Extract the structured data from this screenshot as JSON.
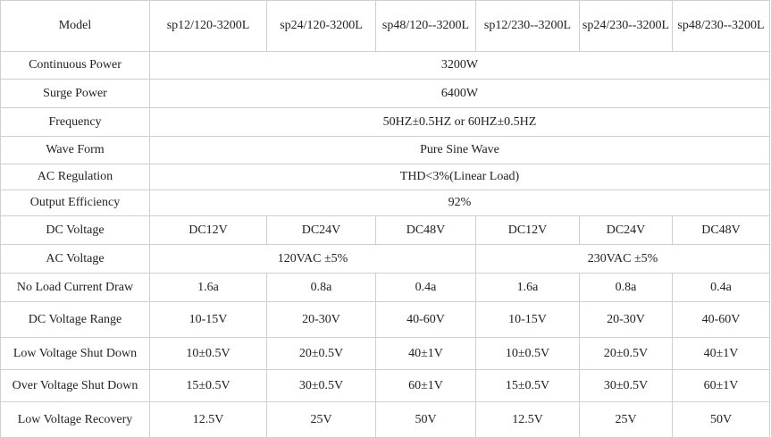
{
  "table": {
    "header": [
      "Model",
      "sp12/120-3200L",
      "sp24/120-3200L",
      "sp48/120--3200L",
      "sp12/230--3200L",
      "sp24/230--3200L",
      "sp48/230--3200L"
    ],
    "rows": [
      [
        "Continuous Power",
        "3200W"
      ],
      [
        "Surge Power",
        "6400W"
      ],
      [
        "Frequency",
        "50HZ±0.5HZ or 60HZ±0.5HZ"
      ],
      [
        "Wave Form",
        "Pure Sine Wave"
      ],
      [
        "AC Regulation",
        "THD<3%(Linear Load)"
      ],
      [
        "Output Efficiency",
        "92%"
      ],
      [
        "DC Voltage",
        "DC12V",
        "DC24V",
        "DC48V",
        "DC12V",
        "DC24V",
        "DC48V"
      ],
      [
        "AC Voltage",
        "120VAC ±5%",
        "230VAC ±5%"
      ],
      [
        "No Load Current Draw",
        "1.6a",
        "0.8a",
        "0.4a",
        "1.6a",
        "0.8a",
        "0.4a"
      ],
      [
        "DC Voltage Range",
        "10-15V",
        "20-30V",
        "40-60V",
        "10-15V",
        "20-30V",
        "40-60V"
      ],
      [
        "Low Voltage Shut Down",
        "10±0.5V",
        "20±0.5V",
        "40±1V",
        "10±0.5V",
        "20±0.5V",
        "40±1V"
      ],
      [
        "Over Voltage Shut Down",
        "15±0.5V",
        "30±0.5V",
        "60±1V",
        "15±0.5V",
        "30±0.5V",
        "60±1V"
      ],
      [
        "Low Voltage Recovery",
        "12.5V",
        "25V",
        "50V",
        "12.5V",
        "25V",
        "50V"
      ]
    ]
  }
}
